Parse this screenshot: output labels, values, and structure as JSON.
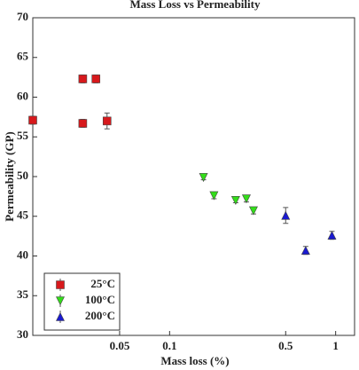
{
  "chart_data": {
    "type": "scatter",
    "title": "Mass Loss vs Permeability",
    "x_label": "Mass loss (%)",
    "y_label": "Permeability (GP)",
    "xscale": "log",
    "xlim": [
      0.015,
      1.3
    ],
    "ylim": [
      30,
      70
    ],
    "xticks": [
      0.05,
      0.1,
      0.5,
      1
    ],
    "yticks": [
      30,
      35,
      40,
      45,
      50,
      55,
      60,
      65,
      70
    ],
    "legend_position": "lower left",
    "series": [
      {
        "name": "25°C",
        "color": "#d7191c",
        "marker": "square",
        "x": [
          0.015,
          0.03,
          0.03,
          0.036,
          0.042
        ],
        "values": [
          57.1,
          56.7,
          62.3,
          62.3,
          57.0
        ],
        "errors": [
          0.5,
          0.5,
          0.5,
          0.5,
          1.0
        ]
      },
      {
        "name": "100°C",
        "color": "#33dd1a",
        "marker": "triangle-down",
        "x": [
          0.16,
          0.185,
          0.25,
          0.29,
          0.32
        ],
        "values": [
          49.9,
          47.6,
          47.0,
          47.2,
          45.7
        ],
        "errors": [
          0.3,
          0.4,
          0.3,
          0.4,
          0.4
        ]
      },
      {
        "name": "200°C",
        "color": "#1a1ad0",
        "marker": "triangle-up",
        "x": [
          0.5,
          0.66,
          0.95
        ],
        "values": [
          45.1,
          40.7,
          42.6
        ],
        "errors": [
          1.0,
          0.5,
          0.5
        ]
      }
    ]
  }
}
